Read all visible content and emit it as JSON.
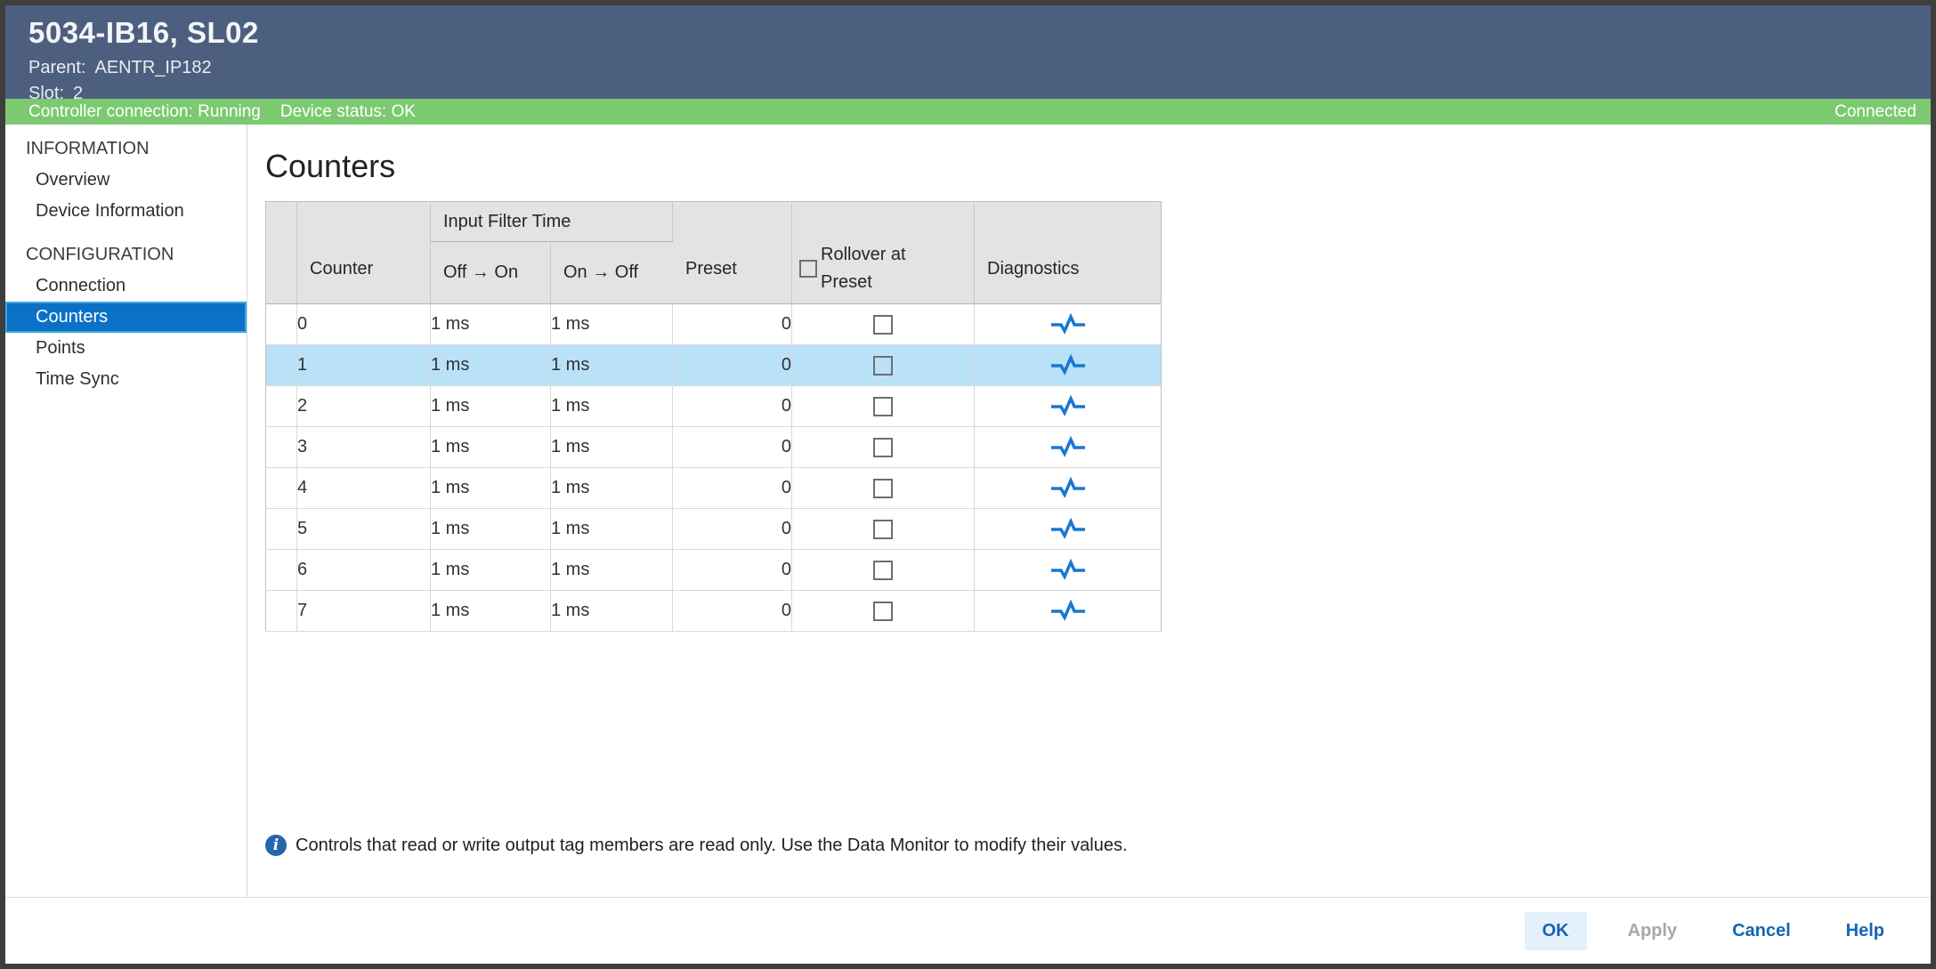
{
  "window": {
    "title": "5034-IB16, SL02",
    "parent_label": "Parent:",
    "parent_value": "AENTR_IP182",
    "slot_label": "Slot:",
    "slot_value": "2"
  },
  "status_bar": {
    "controller_connection": "Controller connection: Running",
    "device_status": "Device status: OK",
    "connection_state": "Connected",
    "bar_color": "#7bca70"
  },
  "sidebar": {
    "sections": [
      {
        "header": "INFORMATION",
        "items": [
          {
            "label": "Overview",
            "selected": false
          },
          {
            "label": "Device Information",
            "selected": false
          }
        ]
      },
      {
        "header": "CONFIGURATION",
        "items": [
          {
            "label": "Connection",
            "selected": false
          },
          {
            "label": "Counters",
            "selected": true
          },
          {
            "label": "Points",
            "selected": false
          },
          {
            "label": "Time Sync",
            "selected": false
          }
        ]
      }
    ],
    "selected_bg": "#0a71c6",
    "selected_border": "#36a7e0"
  },
  "main": {
    "title": "Counters",
    "table": {
      "group_header": "Input Filter Time",
      "headers": {
        "counter": "Counter",
        "off_on": "Off → On",
        "on_off": "On → Off",
        "preset": "Preset",
        "rollover": "Rollover at Preset",
        "diagnostics": "Diagnostics"
      },
      "header_rollover_checked": false,
      "rows": [
        {
          "counter": "0",
          "off_on": "1 ms",
          "on_off": "1 ms",
          "preset": "0",
          "rollover_checked": false,
          "selected": false
        },
        {
          "counter": "1",
          "off_on": "1 ms",
          "on_off": "1 ms",
          "preset": "0",
          "rollover_checked": false,
          "selected": true
        },
        {
          "counter": "2",
          "off_on": "1 ms",
          "on_off": "1 ms",
          "preset": "0",
          "rollover_checked": false,
          "selected": false
        },
        {
          "counter": "3",
          "off_on": "1 ms",
          "on_off": "1 ms",
          "preset": "0",
          "rollover_checked": false,
          "selected": false
        },
        {
          "counter": "4",
          "off_on": "1 ms",
          "on_off": "1 ms",
          "preset": "0",
          "rollover_checked": false,
          "selected": false
        },
        {
          "counter": "5",
          "off_on": "1 ms",
          "on_off": "1 ms",
          "preset": "0",
          "rollover_checked": false,
          "selected": false
        },
        {
          "counter": "6",
          "off_on": "1 ms",
          "on_off": "1 ms",
          "preset": "0",
          "rollover_checked": false,
          "selected": false
        },
        {
          "counter": "7",
          "off_on": "1 ms",
          "on_off": "1 ms",
          "preset": "0",
          "rollover_checked": false,
          "selected": false
        }
      ],
      "selected_row_bg": "#b9e2f8",
      "diagnostics_icon_color": "#1778d2"
    },
    "note": "Controls that read or write output tag members are read only. Use the Data Monitor to modify their values."
  },
  "footer": {
    "buttons": [
      {
        "label": "OK",
        "variant": "primary"
      },
      {
        "label": "Apply",
        "variant": "disabled"
      },
      {
        "label": "Cancel",
        "variant": "link"
      },
      {
        "label": "Help",
        "variant": "link"
      }
    ]
  },
  "colors": {
    "titlebar_bg": "#4d5f7e",
    "table_header_bg": "#e3e3e3",
    "readonly_cell_bg": "#f1f1f1",
    "button_blue": "#1565b5"
  }
}
